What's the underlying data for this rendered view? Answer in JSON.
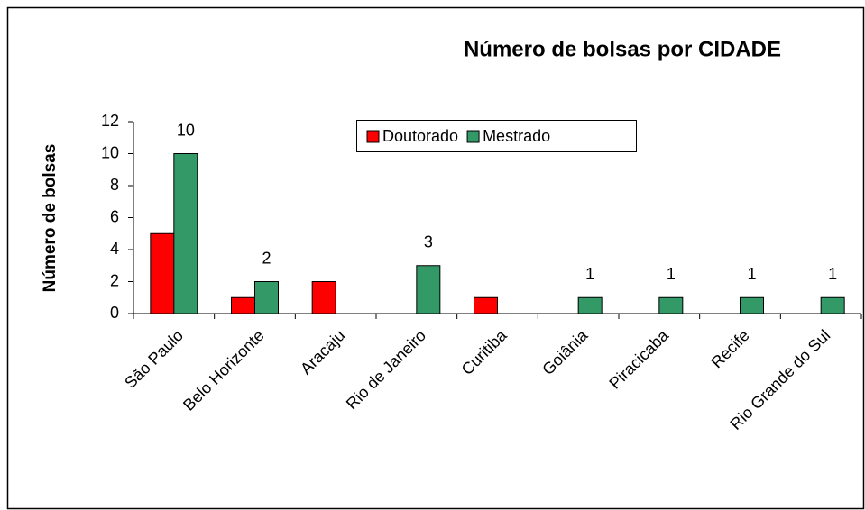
{
  "chart_data": {
    "type": "bar",
    "title": "Número de bolsas por CIDADE",
    "ylabel": "Número de bolsas",
    "categories": [
      "São Paulo",
      "Belo Horizonte",
      "Aracaju",
      "Rio de Janeiro",
      "Curitiba",
      "Goiânia",
      "Piracicaba",
      "Recife",
      "Rio Grande do Sul"
    ],
    "series": [
      {
        "name": "Doutorado",
        "color": "#ff0000",
        "values": [
          5,
          1,
          2,
          0,
          1,
          0,
          0,
          0,
          0
        ],
        "data_labels": false
      },
      {
        "name": "Mestrado",
        "color": "#339966",
        "values": [
          10,
          2,
          0,
          3,
          0,
          1,
          1,
          1,
          1
        ],
        "data_labels": true
      }
    ],
    "ylim": [
      0,
      12
    ],
    "yticks": [
      0,
      2,
      4,
      6,
      8,
      10,
      12
    ],
    "grid": false,
    "legend": "top"
  }
}
